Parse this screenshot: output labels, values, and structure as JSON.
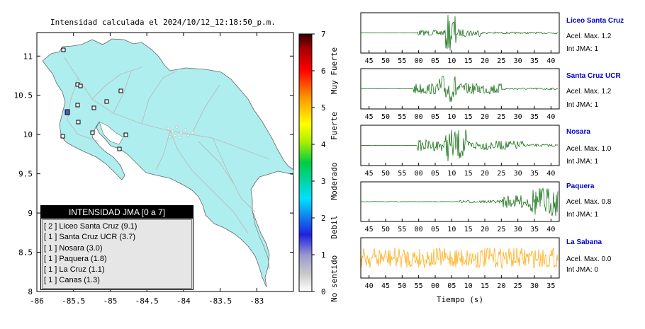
{
  "map": {
    "title": "Intensidad calculada el 2024/10/12_12:18:50_p.m.",
    "x_ticks": [
      "-86",
      "-85.5",
      "-85",
      "-84.5",
      "-84",
      "-83.5",
      "-83"
    ],
    "y_ticks": [
      "11",
      "10.5",
      "10",
      "9.5",
      "9",
      "8.5",
      "8"
    ],
    "xlim": [
      -86,
      -82.5
    ],
    "ylim": [
      8,
      11.3
    ]
  },
  "colorbar": {
    "ticks": [
      "0",
      "1",
      "2",
      "3",
      "4",
      "5",
      "6",
      "7"
    ],
    "labels": [
      "No sentido",
      "Debil",
      "Moderado",
      "Fuerte",
      "Muy Fuerte"
    ]
  },
  "legend": {
    "title": "INTENSIDAD JMA [0 a 7]",
    "items": [
      "[ 2 ]  Liceo Santa Cruz (9.1)",
      "[ 1 ]  Santa Cruz UCR (3.7)",
      "[ 1 ]  Nosara (3.0)",
      "[ 1 ]  Paquera (1.8)",
      "[ 1 ]  La Cruz (1.1)",
      "[ 1 ]  Canas (1.3)"
    ]
  },
  "stations": [
    {
      "name": "Liceo Santa Cruz",
      "acel": "Acel. Max. 1.2",
      "int": "Int JMA: 1",
      "color": "#006400"
    },
    {
      "name": "Santa Cruz UCR",
      "acel": "Acel. Max. 1.2",
      "int": "Int JMA: 1",
      "color": "#006400"
    },
    {
      "name": "Nosara",
      "acel": "Acel. Max. 1.0",
      "int": "Int JMA: 1",
      "color": "#006400"
    },
    {
      "name": "Paquera",
      "acel": "Acel. Max. 0.8",
      "int": "Int JMA: 1",
      "color": "#006400"
    },
    {
      "name": "La Sabana",
      "acel": "Acel. Max. 0.0",
      "int": "Int JMA: 0",
      "color": "#ffa500"
    }
  ],
  "wave_axis": {
    "ticks": [
      "45",
      "50",
      "55",
      "00",
      "05",
      "10",
      "15",
      "20",
      "25",
      "30",
      "35",
      "40"
    ],
    "last_ticks": [
      "40",
      "45",
      "50",
      "55",
      "00",
      "05",
      "10",
      "15",
      "20",
      "25",
      "30",
      "35"
    ],
    "xlabel": "Tiempo (s)"
  },
  "chart_data": {
    "type": "map",
    "title": "Intensidad calculada el 2024/10/12_12:18:50_p.m.",
    "xlim": [
      -86,
      -82.5
    ],
    "ylim": [
      8,
      11.3
    ],
    "station_intensities": [
      {
        "station": "Liceo Santa Cruz",
        "jma": 2,
        "value": 9.1
      },
      {
        "station": "Santa Cruz UCR",
        "jma": 1,
        "value": 3.7
      },
      {
        "station": "Nosara",
        "jma": 1,
        "value": 3.0
      },
      {
        "station": "Paquera",
        "jma": 1,
        "value": 1.8
      },
      {
        "station": "La Cruz",
        "jma": 1,
        "value": 1.1
      },
      {
        "station": "Canas",
        "jma": 1,
        "value": 1.3
      }
    ],
    "colorbar_range": [
      0,
      7
    ]
  }
}
